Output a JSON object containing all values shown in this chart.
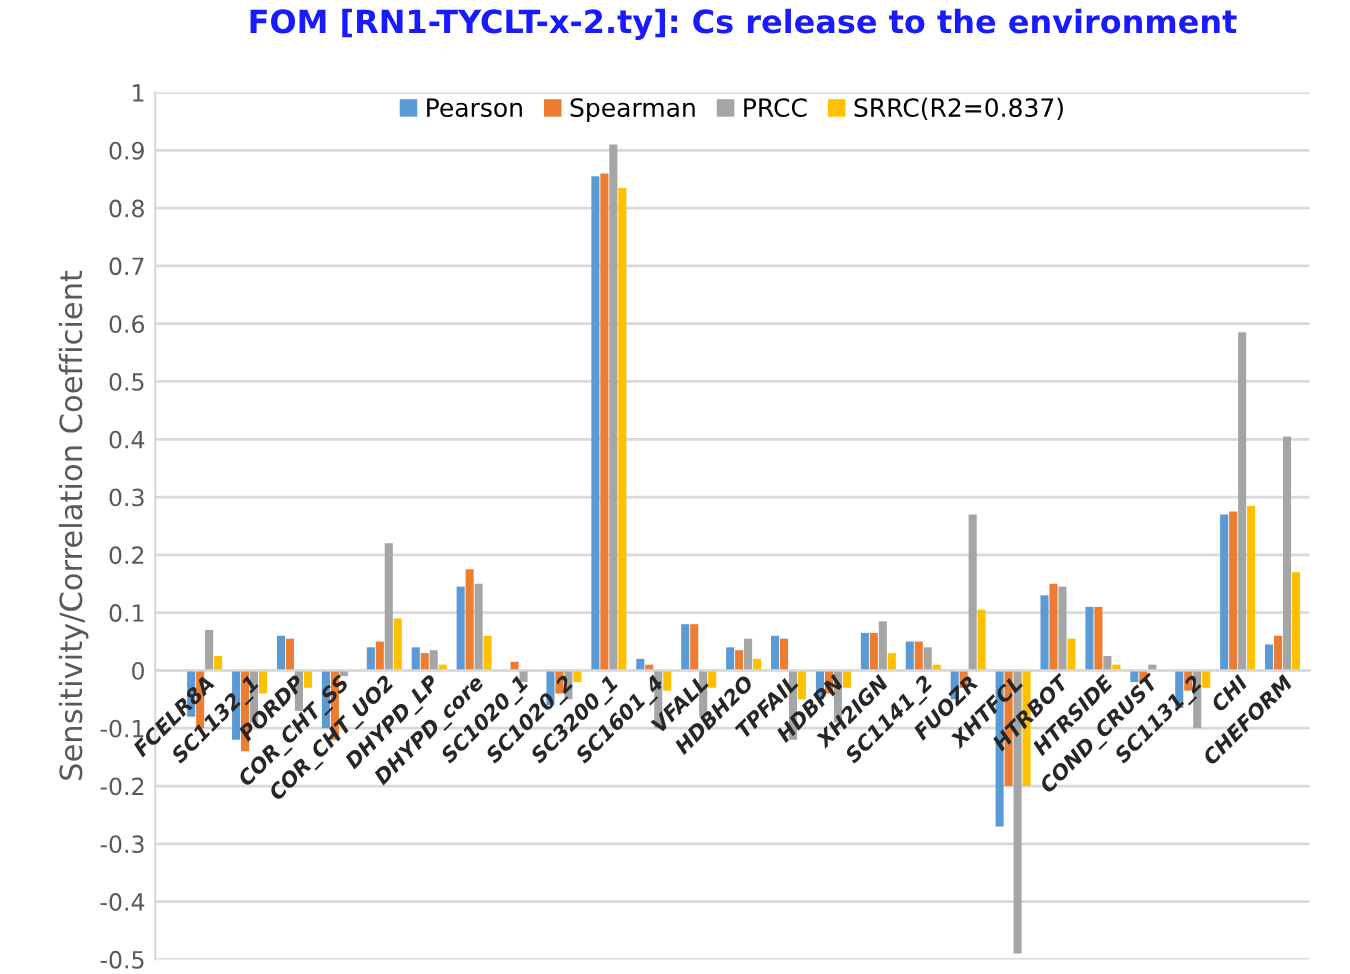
{
  "chart_data": {
    "type": "bar",
    "title": "FOM [RN1-TYCLT-x-2.ty]: Cs release to the environment",
    "ylabel": "Sensitivity/Correlation Coefficient",
    "categories": [
      "FCELR8A",
      "SC1132_1",
      "PORDP",
      "COR_CHT_SS",
      "COR_CHT_UO2",
      "DHYPD_LP",
      "DHYPD_core",
      "SC1020_1",
      "SC1020_2",
      "SC3200_1",
      "SC1601_4",
      "VFALL",
      "HDBH2O",
      "TPFAIL",
      "HDBPN",
      "XH2IGN",
      "SC1141_2",
      "FUOZR",
      "XHTFCL",
      "HTRBOT",
      "HTRSIDE",
      "COND_CRUST",
      "SC1131_2",
      "CHI",
      "CHEFORM"
    ],
    "series": [
      {
        "name": "Pearson",
        "color": "#5b9bd5",
        "values": [
          -0.08,
          -0.12,
          0.06,
          -0.1,
          0.04,
          0.04,
          0.145,
          null,
          -0.06,
          0.855,
          0.02,
          0.08,
          0.04,
          0.06,
          -0.05,
          0.065,
          0.05,
          -0.05,
          -0.27,
          0.13,
          0.11,
          -0.02,
          -0.065,
          0.27,
          0.045
        ]
      },
      {
        "name": "Spearman",
        "color": "#ed7d31",
        "values": [
          -0.1,
          -0.14,
          0.055,
          -0.12,
          0.05,
          0.03,
          0.175,
          0.015,
          -0.04,
          0.86,
          0.01,
          0.08,
          0.035,
          0.055,
          -0.04,
          0.065,
          0.05,
          -0.03,
          -0.2,
          0.15,
          0.11,
          -0.02,
          -0.035,
          0.275,
          0.06
        ]
      },
      {
        "name": "PRCC",
        "color": "#a5a5a5",
        "values": [
          0.07,
          -0.09,
          -0.07,
          -0.01,
          0.22,
          0.035,
          0.15,
          -0.02,
          -0.05,
          0.91,
          -0.1,
          -0.08,
          0.055,
          -0.12,
          -0.09,
          0.085,
          0.04,
          0.27,
          -0.49,
          0.145,
          0.025,
          0.01,
          -0.1,
          0.585,
          0.405
        ]
      },
      {
        "name": "SRRC(R2=0.837)",
        "color": "#ffc000",
        "values": [
          0.025,
          -0.04,
          -0.03,
          null,
          0.09,
          0.01,
          0.06,
          null,
          -0.02,
          0.835,
          -0.035,
          -0.03,
          0.02,
          -0.05,
          -0.03,
          0.03,
          0.01,
          0.105,
          -0.2,
          0.055,
          0.01,
          null,
          -0.03,
          0.285,
          0.17
        ]
      }
    ],
    "ylim": [
      -0.5,
      1
    ],
    "yticks": [
      -0.5,
      -0.4,
      -0.3,
      -0.2,
      -0.1,
      0,
      0.1,
      0.2,
      0.3,
      0.4,
      0.5,
      0.6,
      0.7,
      0.8,
      0.9,
      1
    ],
    "grid": "y",
    "legend": "top"
  }
}
